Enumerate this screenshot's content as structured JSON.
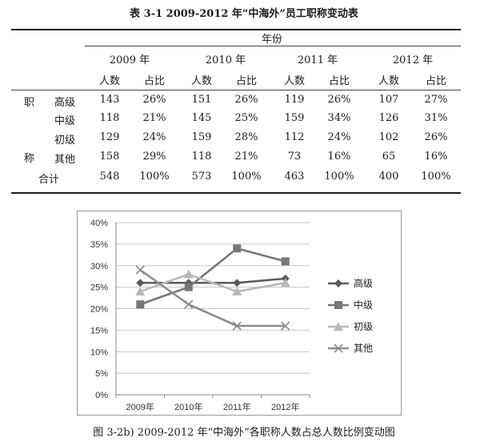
{
  "table": {
    "caption": "表 3-1    2009-2012 年“中海外”员工职称变动表",
    "header_group": "年份",
    "years": [
      "2009 年",
      "2010 年",
      "2011 年",
      "2012 年"
    ],
    "sub_headers": [
      "人数",
      "占比"
    ],
    "row_group_label_1": "职",
    "row_group_label_2": "称",
    "rows": [
      {
        "label": "高级",
        "cells": [
          "143",
          "26%",
          "151",
          "26%",
          "119",
          "26%",
          "107",
          "27%"
        ]
      },
      {
        "label": "中级",
        "cells": [
          "118",
          "21%",
          "145",
          "25%",
          "159",
          "34%",
          "126",
          "31%"
        ]
      },
      {
        "label": "初级",
        "cells": [
          "129",
          "24%",
          "159",
          "28%",
          "112",
          "24%",
          "102",
          "26%"
        ]
      },
      {
        "label": "其他",
        "cells": [
          "158",
          "29%",
          "118",
          "21%",
          "73",
          "16%",
          "65",
          "16%"
        ]
      },
      {
        "label": "合计",
        "cells": [
          "548",
          "100%",
          "573",
          "100%",
          "463",
          "100%",
          "400",
          "100%"
        ]
      }
    ]
  },
  "chart_caption": "图 3-2b) 2009-2012 年“中海外”各职称人数占总人数比例变动图",
  "chart_data": {
    "type": "line",
    "categories": [
      "2009年",
      "2010年",
      "2011年",
      "2012年"
    ],
    "ylim": [
      0,
      40
    ],
    "yticks": [
      "0%",
      "5%",
      "10%",
      "15%",
      "20%",
      "25%",
      "30%",
      "35%",
      "40%"
    ],
    "legend_position": "right",
    "grid": true,
    "series": [
      {
        "name": "高级",
        "values": [
          26,
          26,
          26,
          27
        ],
        "color": "#5a5a5a",
        "marker": "diamond"
      },
      {
        "name": "中级",
        "values": [
          21,
          25,
          34,
          31
        ],
        "color": "#777777",
        "marker": "square"
      },
      {
        "name": "初级",
        "values": [
          24,
          28,
          24,
          26
        ],
        "color": "#b9b9b9",
        "marker": "triangle"
      },
      {
        "name": "其他",
        "values": [
          29,
          21,
          16,
          16
        ],
        "color": "#8c8c8c",
        "marker": "x"
      }
    ]
  }
}
